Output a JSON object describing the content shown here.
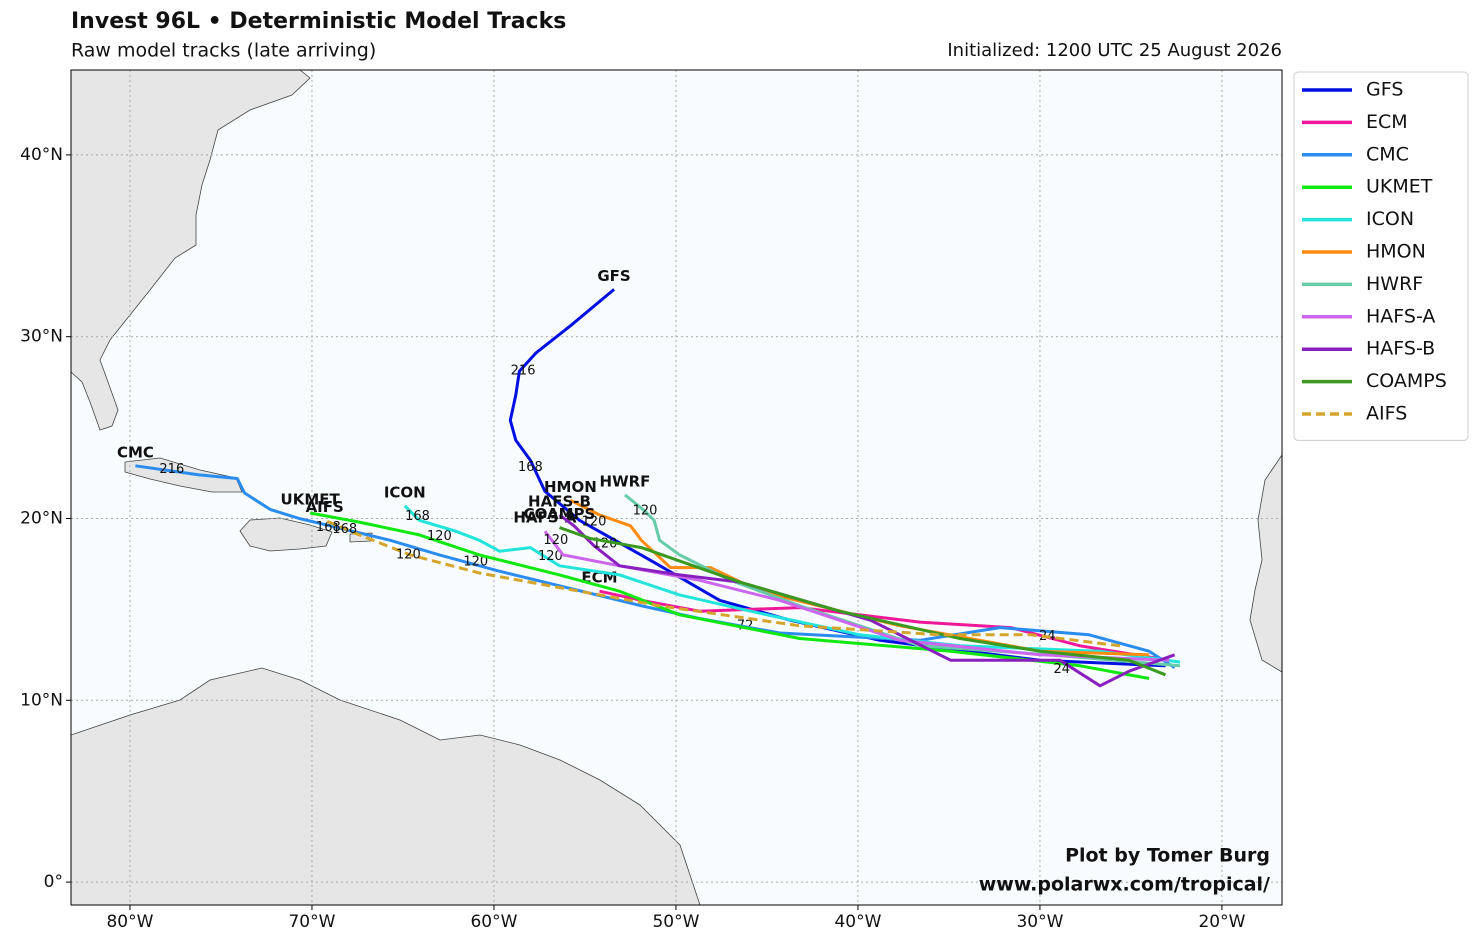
{
  "chart_data": {
    "type": "track-map",
    "title": "Invest 96L • Deterministic Model Tracks",
    "subtitle": "Raw model tracks (late arriving)",
    "init": "Initialized: 1200 UTC 25 August 2026",
    "credits": [
      "Plot by Tomer Burg",
      "www.polarwx.com/tropical/"
    ],
    "xlim": [
      -83.24,
      -16.7
    ],
    "ylim": [
      -1.26,
      44.67
    ],
    "xticks": [
      {
        "value": -80,
        "label": "80°W"
      },
      {
        "value": -70,
        "label": "70°W"
      },
      {
        "value": -60,
        "label": "60°W"
      },
      {
        "value": -50,
        "label": "50°W"
      },
      {
        "value": -40,
        "label": "40°W"
      },
      {
        "value": -30,
        "label": "30°W"
      },
      {
        "value": -20,
        "label": "20°W"
      }
    ],
    "yticks": [
      {
        "value": 0,
        "label": "0°"
      },
      {
        "value": 10,
        "label": "10°N"
      },
      {
        "value": 20,
        "label": "20°N"
      },
      {
        "value": 30,
        "label": "30°N"
      },
      {
        "value": 40,
        "label": "40°N"
      }
    ],
    "grid": true,
    "legend": "outside-right",
    "series": [
      {
        "name": "GFS",
        "color": "#0010e0",
        "dash": false,
        "lon": [
          -23.1,
          -30,
          -38.8,
          -43.7,
          -47.6,
          -51.4,
          -55.3,
          -57.2,
          -58,
          -58.8,
          -59.1,
          -58.8,
          -58.6,
          -57.7,
          -55.8,
          -53.4
        ],
        "lat": [
          11.9,
          12.2,
          13.3,
          14.4,
          15.5,
          17.7,
          19.9,
          21.5,
          23.2,
          24.3,
          25.4,
          26.8,
          28.1,
          29.1,
          30.6,
          32.6
        ],
        "hour_labels": [
          {
            "hour": 216,
            "lon": -58.4,
            "lat": 28.1
          },
          {
            "hour": 168,
            "lon": -58,
            "lat": 22.8
          }
        ]
      },
      {
        "name": "ECM",
        "color": "#f0189a",
        "dash": false,
        "lon": [
          -22.9,
          -27.8,
          -31.6,
          -36.6,
          -43.2,
          -48.7,
          -51.9,
          -54.2
        ],
        "lat": [
          12.2,
          13.0,
          14.0,
          14.3,
          15.1,
          14.9,
          15.5,
          16.0
        ],
        "hour_labels": [
          {
            "hour": 72,
            "lon": -46.2,
            "lat": 14.1
          }
        ]
      },
      {
        "name": "CMC",
        "color": "#2b8cf0",
        "dash": false,
        "lon": [
          -22.6,
          -24,
          -27.3,
          -32.2,
          -36.6,
          -44.3,
          -48.7,
          -51.9,
          -56.4,
          -59.7,
          -63,
          -65.7,
          -69,
          -70.7,
          -72.3,
          -73.7,
          -74.1,
          -76.2,
          -79.7
        ],
        "lat": [
          11.8,
          12.7,
          13.6,
          14.0,
          13.3,
          13.7,
          14.5,
          15.2,
          16.3,
          17.1,
          18.0,
          18.8,
          19.6,
          20.0,
          20.5,
          21.4,
          22.2,
          22.4,
          22.9
        ],
        "hour_labels": [
          {
            "hour": 216,
            "lon": -77.7,
            "lat": 22.7
          },
          {
            "hour": 168,
            "lon": -69.1,
            "lat": 19.5
          },
          {
            "hour": 120,
            "lon": -61,
            "lat": 17.6
          },
          {
            "hour": 24,
            "lon": -29.6,
            "lat": 13.5
          }
        ]
      },
      {
        "name": "UKMET",
        "color": "#10e810",
        "dash": false,
        "lon": [
          -24,
          -27.8,
          -34.9,
          -43.2,
          -49.8,
          -53.1,
          -56.4,
          -60.8,
          -64.1,
          -67.4,
          -70.1
        ],
        "lat": [
          11.2,
          11.9,
          12.7,
          13.4,
          14.7,
          16.0,
          16.9,
          18.0,
          19.1,
          19.8,
          20.3
        ],
        "hour_labels": [
          {
            "hour": 120,
            "lon": -63,
            "lat": 19
          }
        ]
      },
      {
        "name": "ICON",
        "color": "#22e4dc",
        "dash": false,
        "lon": [
          -22.3,
          -26.7,
          -34.4,
          -39.9,
          -45.9,
          -49.8,
          -53.1,
          -56.4,
          -58,
          -59.7,
          -60.8,
          -62.1,
          -64.1,
          -64.9
        ],
        "lat": [
          12.1,
          12.7,
          13.0,
          13.6,
          14.9,
          15.8,
          16.9,
          17.4,
          18.4,
          18.2,
          18.8,
          19.3,
          19.9,
          20.7
        ],
        "hour_labels": [
          {
            "hour": 168,
            "lon": -64.2,
            "lat": 20.1
          },
          {
            "hour": 120,
            "lon": -56.9,
            "lat": 17.9
          }
        ]
      },
      {
        "name": "HMON",
        "color": "#ff8a10",
        "dash": false,
        "lon": [
          -24,
          -30,
          -37.7,
          -45.4,
          -48.1,
          -50.3,
          -51.9,
          -52.5,
          -54.2,
          -55.8
        ],
        "lat": [
          12.5,
          12.7,
          14.1,
          16.0,
          17.3,
          17.3,
          18.8,
          19.6,
          20.2,
          21.0
        ],
        "hour_labels": [
          {
            "hour": 120,
            "lon": -54.5,
            "lat": 19.8
          }
        ]
      },
      {
        "name": "HWRF",
        "color": "#66cca8",
        "dash": false,
        "lon": [
          -22.3,
          -29.5,
          -36.6,
          -43.2,
          -47,
          -49.8,
          -50.9,
          -51.2,
          -51.7,
          -52.8
        ],
        "lat": [
          11.9,
          12.5,
          13.0,
          15.2,
          16.6,
          18.0,
          18.8,
          19.9,
          20.4,
          21.3
        ],
        "hour_labels": [
          {
            "hour": 120,
            "lon": -51.7,
            "lat": 20.4
          }
        ]
      },
      {
        "name": "HAFS-A",
        "color": "#cc66ee",
        "dash": false,
        "lon": [
          -22.9,
          -30,
          -37.7,
          -44.3,
          -48.7,
          -53.1,
          -56.2,
          -57.2
        ],
        "lat": [
          12.2,
          12.5,
          13.3,
          15.5,
          16.6,
          17.4,
          18.0,
          19.3
        ],
        "hour_labels": [
          {
            "hour": 120,
            "lon": -56.6,
            "lat": 18.8
          }
        ]
      },
      {
        "name": "HAFS-B",
        "color": "#8a1fc0",
        "dash": false,
        "lon": [
          -22.6,
          -25.1,
          -26.7,
          -28.9,
          -34.9,
          -39.3,
          -46.5,
          -49.8,
          -53.1,
          -54.5,
          -55.6,
          -56.4
        ],
        "lat": [
          12.5,
          11.6,
          10.8,
          12.2,
          12.2,
          14.4,
          16.5,
          16.9,
          17.4,
          18.5,
          19.6,
          20.2
        ],
        "hour_labels": [
          {
            "hour": 120,
            "lon": -53.9,
            "lat": 18.6
          },
          {
            "hour": 24,
            "lon": -28.8,
            "lat": 11.7
          }
        ]
      },
      {
        "name": "COAMPS",
        "color": "#3a9a1f",
        "dash": false,
        "lon": [
          -23.1,
          -25.1,
          -30,
          -34.4,
          -41,
          -46.5,
          -51.9,
          -54.7,
          -56.4
        ],
        "lat": [
          11.4,
          12.2,
          12.7,
          13.4,
          14.9,
          16.5,
          18.4,
          18.9,
          19.5
        ],
        "hour_labels": []
      },
      {
        "name": "AIFS",
        "color": "#d4a52a",
        "dash": true,
        "lon": [
          -25.6,
          -30.5,
          -35.5,
          -43.2,
          -50.9,
          -56.4,
          -60.8,
          -64.6,
          -67.4,
          -69.3
        ],
        "lat": [
          13.0,
          13.6,
          13.6,
          14.1,
          15.2,
          16.2,
          17.0,
          18.0,
          19.1,
          19.9
        ],
        "hour_labels": [
          {
            "hour": 120,
            "lon": -64.7,
            "lat": 18
          },
          {
            "hour": 168,
            "lon": -68.2,
            "lat": 19.4
          }
        ]
      }
    ]
  }
}
